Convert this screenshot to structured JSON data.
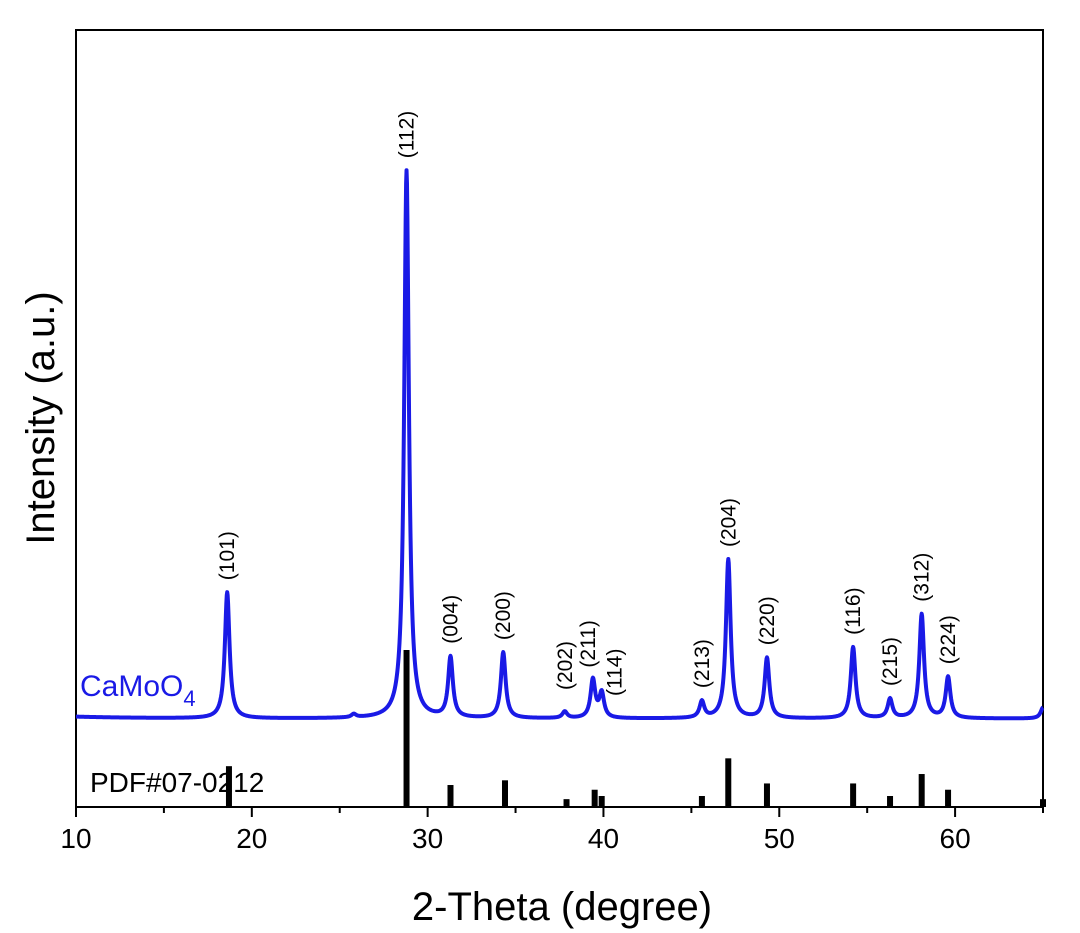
{
  "chart_data": {
    "type": "line",
    "xlabel": "2-Theta (degree)",
    "ylabel": "Intensity (a.u.)",
    "xlim": [
      10,
      65
    ],
    "x_ticks": [
      10,
      20,
      30,
      40,
      50,
      60
    ],
    "x_tick_labels": [
      "10",
      "20",
      "30",
      "40",
      "50",
      "60"
    ],
    "grid": false,
    "series": [
      {
        "name": "CaMoO",
        "name_subscript": "4",
        "color": "#1a1ae6",
        "peaks": [
          {
            "x": 18.6,
            "y": 23,
            "hkl": "(101)"
          },
          {
            "x": 25.8,
            "y": 0.6,
            "hkl": ""
          },
          {
            "x": 28.8,
            "y": 100,
            "hkl": "(112)"
          },
          {
            "x": 31.3,
            "y": 11,
            "hkl": "(004)"
          },
          {
            "x": 34.3,
            "y": 12,
            "hkl": "(200)"
          },
          {
            "x": 37.8,
            "y": 1.2,
            "hkl": "(202)"
          },
          {
            "x": 39.4,
            "y": 7,
            "hkl": "(211)"
          },
          {
            "x": 39.9,
            "y": 4.5,
            "hkl": "(114)"
          },
          {
            "x": 45.6,
            "y": 3,
            "hkl": "(213)"
          },
          {
            "x": 47.1,
            "y": 29,
            "hkl": "(204)"
          },
          {
            "x": 49.3,
            "y": 11,
            "hkl": "(220)"
          },
          {
            "x": 54.2,
            "y": 13,
            "hkl": "(116)"
          },
          {
            "x": 56.3,
            "y": 3.5,
            "hkl": "(215)"
          },
          {
            "x": 58.1,
            "y": 19,
            "hkl": "(312)"
          },
          {
            "x": 59.6,
            "y": 7.5,
            "hkl": "(224)"
          },
          {
            "x": 65.0,
            "y": 2,
            "hkl": ""
          }
        ]
      }
    ],
    "reference": {
      "name": "PDF#07-0212",
      "color": "#000000",
      "lines": [
        {
          "x": 18.7,
          "y": 26
        },
        {
          "x": 28.8,
          "y": 100
        },
        {
          "x": 31.3,
          "y": 14
        },
        {
          "x": 34.4,
          "y": 17
        },
        {
          "x": 37.9,
          "y": 5
        },
        {
          "x": 39.5,
          "y": 11
        },
        {
          "x": 39.9,
          "y": 7
        },
        {
          "x": 45.6,
          "y": 7
        },
        {
          "x": 47.1,
          "y": 31
        },
        {
          "x": 49.3,
          "y": 15
        },
        {
          "x": 54.2,
          "y": 15
        },
        {
          "x": 56.3,
          "y": 7
        },
        {
          "x": 58.1,
          "y": 21
        },
        {
          "x": 59.6,
          "y": 11
        },
        {
          "x": 65.0,
          "y": 5
        }
      ]
    }
  }
}
